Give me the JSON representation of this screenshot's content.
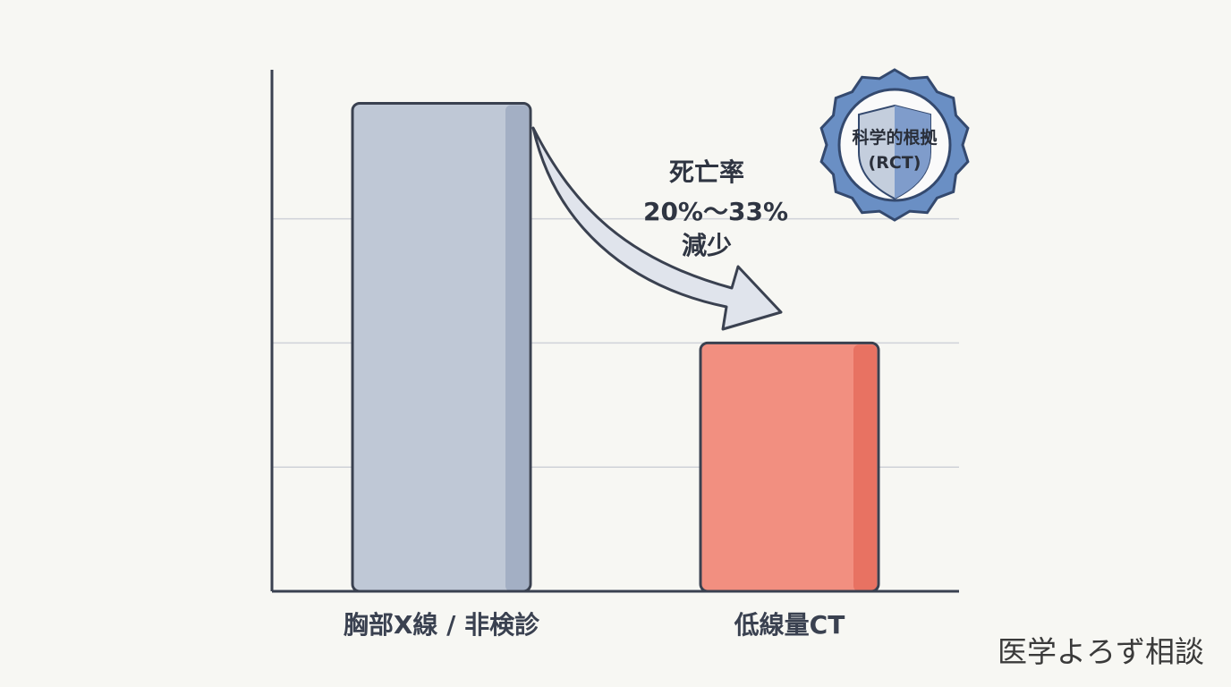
{
  "chart_data": {
    "type": "bar",
    "categories": [
      "胸部X線 / 非検診",
      "低線量CT"
    ],
    "values": [
      3.93,
      2.0
    ],
    "ylim": [
      0,
      4.2
    ],
    "grid": true,
    "colors": [
      "#bfc8d6",
      "#f28f80"
    ],
    "shade_colors": [
      "#a3afc4",
      "#e87262"
    ],
    "annotation": {
      "line1": "死亡率",
      "line2": "20%〜33%",
      "line3": "減少"
    },
    "badge": {
      "line1": "科学的根拠",
      "line2": "(RCT)",
      "color": "#5b82b8",
      "icon": "shield-icon"
    }
  },
  "watermark": "医学よろず相談"
}
